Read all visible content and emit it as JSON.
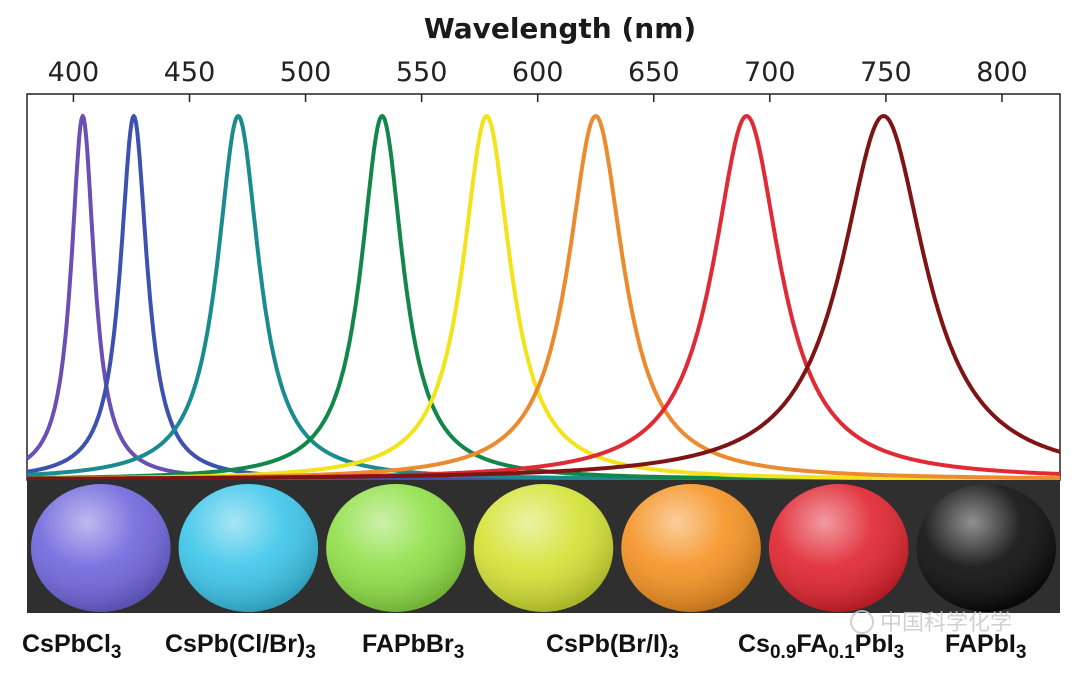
{
  "chart_data": {
    "type": "line",
    "title": "",
    "xlabel": "Wavelength (nm)",
    "ylabel": "",
    "xlim": [
      380,
      825
    ],
    "xticks": [
      400,
      450,
      500,
      550,
      600,
      650,
      700,
      750,
      800
    ],
    "grid": false,
    "series": [
      {
        "name": "CsPbCl3 violet",
        "peak_nm": 404,
        "fwhm_nm": 12,
        "color": "#6a4fb5"
      },
      {
        "name": "CsPb(Cl/Br)3 blue",
        "peak_nm": 426,
        "fwhm_nm": 14,
        "color": "#3d52b0"
      },
      {
        "name": "CsPb(Cl/Br)3 cyan",
        "peak_nm": 471,
        "fwhm_nm": 22,
        "color": "#1a8c8f"
      },
      {
        "name": "FAPbBr3",
        "peak_nm": 533,
        "fwhm_nm": 22,
        "color": "#13874a"
      },
      {
        "name": "CsPb(Br/I)3 yellow",
        "peak_nm": 578,
        "fwhm_nm": 25,
        "color": "#f2e31a"
      },
      {
        "name": "CsPb(Br/I)3 orange",
        "peak_nm": 625,
        "fwhm_nm": 29,
        "color": "#ec8a2e"
      },
      {
        "name": "Cs0.9FA0.1PbI3",
        "peak_nm": 690,
        "fwhm_nm": 35,
        "color": "#e02a36"
      },
      {
        "name": "FAPbI3",
        "peak_nm": 749,
        "fwhm_nm": 44,
        "color": "#7e1414"
      }
    ]
  },
  "samples": [
    {
      "formula": "CsPbCl3",
      "main": "CsPbCl",
      "sub": "3",
      "color": "#6f66dd"
    },
    {
      "formula": "CsPb(Cl/Br)3",
      "main": "CsPb(Cl/Br)",
      "sub": "3",
      "color": "#3cc6ea"
    },
    {
      "formula": "FAPbBr3",
      "main": "FAPbBr",
      "sub": "3",
      "color": "#8ee046"
    },
    {
      "formula": "",
      "main": "",
      "sub": "",
      "color": "#d4e334"
    },
    {
      "formula": "CsPb(Br/I)3",
      "main": "CsPb(Br/I)",
      "sub": "3",
      "color": "#f59222"
    },
    {
      "formula": "Cs0.9FA0.1PbI3",
      "color": "#e0232e"
    },
    {
      "formula": "FAPbI3",
      "main": "FAPbI",
      "sub": "3",
      "color": "#0b0b0b"
    }
  ],
  "label_cs": {
    "a": "Cs",
    "b": "0.9",
    "c": "FA",
    "d": "0.1",
    "e": "PbI",
    "f": "3"
  },
  "watermark": "中国科学化学"
}
